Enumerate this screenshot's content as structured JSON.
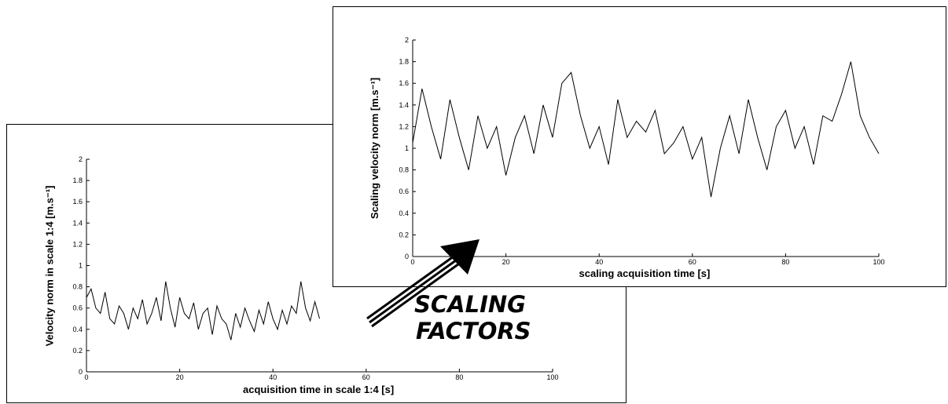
{
  "caption": {
    "line1": "SCALING",
    "line2": "FACTORS"
  },
  "chart_data": [
    {
      "type": "line",
      "xlabel": "acquisition time in scale 1:4 [s]",
      "ylabel": "Velocity norm in scale 1:4 [m.s⁻¹]",
      "xlim": [
        0,
        100
      ],
      "ylim": [
        0,
        2
      ],
      "xticks": [
        0,
        20,
        40,
        60,
        80,
        100
      ],
      "yticks": [
        0,
        0.2,
        0.4,
        0.6,
        0.8,
        1,
        1.2,
        1.4,
        1.6,
        1.8,
        2
      ],
      "grid": false,
      "series": [
        {
          "x": [
            0,
            1,
            2,
            3,
            4,
            5,
            6,
            7,
            8,
            9,
            10,
            11,
            12,
            13,
            14,
            15,
            16,
            17,
            18,
            19,
            20,
            21,
            22,
            23,
            24,
            25,
            26,
            27,
            28,
            29,
            30,
            31,
            32,
            33,
            34,
            35,
            36,
            37,
            38,
            39,
            40,
            41,
            42,
            43,
            44,
            45,
            46,
            47,
            48,
            49,
            50
          ],
          "values": [
            0.7,
            0.78,
            0.6,
            0.55,
            0.75,
            0.5,
            0.45,
            0.62,
            0.55,
            0.4,
            0.6,
            0.5,
            0.68,
            0.45,
            0.55,
            0.7,
            0.48,
            0.85,
            0.6,
            0.42,
            0.7,
            0.55,
            0.5,
            0.65,
            0.4,
            0.55,
            0.6,
            0.35,
            0.62,
            0.5,
            0.45,
            0.3,
            0.55,
            0.42,
            0.6,
            0.48,
            0.38,
            0.58,
            0.45,
            0.66,
            0.5,
            0.4,
            0.58,
            0.45,
            0.62,
            0.55,
            0.85,
            0.6,
            0.48,
            0.66,
            0.5
          ]
        }
      ]
    },
    {
      "type": "line",
      "xlabel": "scaling acquisition time [s]",
      "ylabel": "Scaling velocity norm [m.s⁻¹]",
      "xlim": [
        0,
        100
      ],
      "ylim": [
        0,
        2
      ],
      "xticks": [
        0,
        20,
        40,
        60,
        80,
        100
      ],
      "yticks": [
        0,
        0.2,
        0.4,
        0.6,
        0.8,
        1,
        1.2,
        1.4,
        1.6,
        1.8,
        2
      ],
      "grid": false,
      "series": [
        {
          "x": [
            0,
            2,
            4,
            6,
            8,
            10,
            12,
            14,
            16,
            18,
            20,
            22,
            24,
            26,
            28,
            30,
            32,
            34,
            36,
            38,
            40,
            42,
            44,
            46,
            48,
            50,
            52,
            54,
            56,
            58,
            60,
            62,
            64,
            66,
            68,
            70,
            72,
            74,
            76,
            78,
            80,
            82,
            84,
            86,
            88,
            90,
            92,
            94,
            96,
            98,
            100
          ],
          "values": [
            1.05,
            1.55,
            1.2,
            0.9,
            1.45,
            1.1,
            0.8,
            1.3,
            1.0,
            1.2,
            0.75,
            1.1,
            1.3,
            0.95,
            1.4,
            1.1,
            1.6,
            1.7,
            1.3,
            1.0,
            1.2,
            0.85,
            1.45,
            1.1,
            1.25,
            1.15,
            1.35,
            0.95,
            1.05,
            1.2,
            0.9,
            1.1,
            0.55,
            1.0,
            1.3,
            0.95,
            1.45,
            1.1,
            0.8,
            1.2,
            1.35,
            1.0,
            1.2,
            0.85,
            1.3,
            1.25,
            1.5,
            1.8,
            1.3,
            1.1,
            0.95
          ]
        }
      ]
    }
  ]
}
